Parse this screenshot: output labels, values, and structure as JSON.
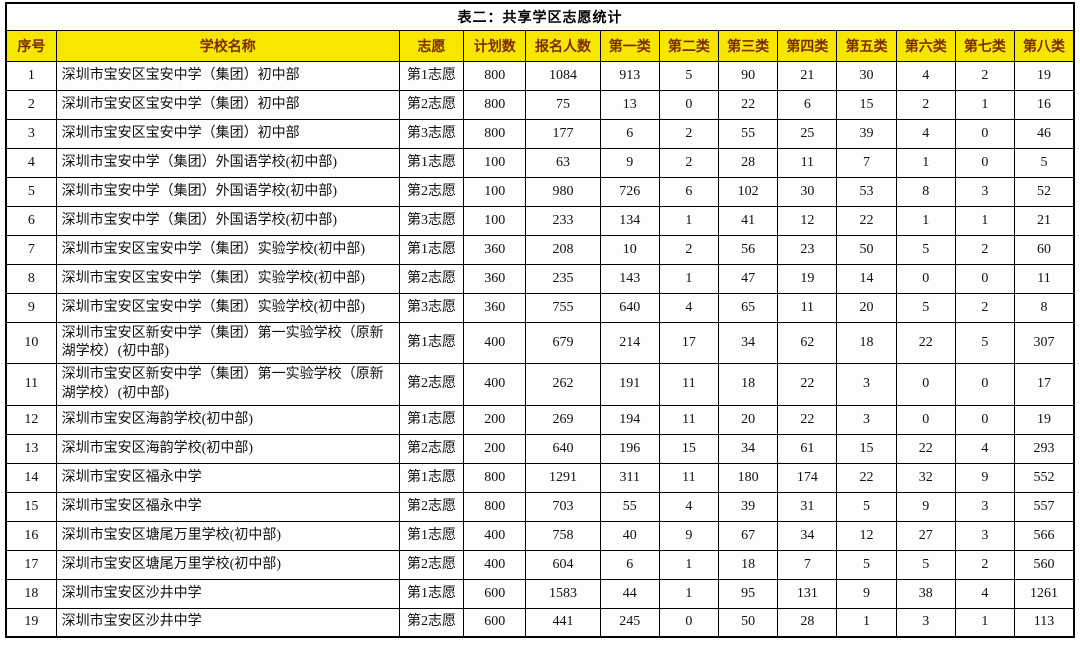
{
  "title": "表二：共享学区志愿统计",
  "colors": {
    "header_bg": "#f7e600",
    "header_text": "#7a2d05",
    "border": "#000000",
    "text": "#111111"
  },
  "table": {
    "headers": [
      "序号",
      "学校名称",
      "志愿",
      "计划数",
      "报名人数",
      "第一类",
      "第二类",
      "第三类",
      "第四类",
      "第五类",
      "第六类",
      "第七类",
      "第八类"
    ],
    "rows": [
      [
        "1",
        "深圳市宝安区宝安中学（集团）初中部",
        "第1志愿",
        "800",
        "1084",
        "913",
        "5",
        "90",
        "21",
        "30",
        "4",
        "2",
        "19"
      ],
      [
        "2",
        "深圳市宝安区宝安中学（集团）初中部",
        "第2志愿",
        "800",
        "75",
        "13",
        "0",
        "22",
        "6",
        "15",
        "2",
        "1",
        "16"
      ],
      [
        "3",
        "深圳市宝安区宝安中学（集团）初中部",
        "第3志愿",
        "800",
        "177",
        "6",
        "2",
        "55",
        "25",
        "39",
        "4",
        "0",
        "46"
      ],
      [
        "4",
        "深圳市宝安中学（集团）外国语学校(初中部)",
        "第1志愿",
        "100",
        "63",
        "9",
        "2",
        "28",
        "11",
        "7",
        "1",
        "0",
        "5"
      ],
      [
        "5",
        "深圳市宝安中学（集团）外国语学校(初中部)",
        "第2志愿",
        "100",
        "980",
        "726",
        "6",
        "102",
        "30",
        "53",
        "8",
        "3",
        "52"
      ],
      [
        "6",
        "深圳市宝安中学（集团）外国语学校(初中部)",
        "第3志愿",
        "100",
        "233",
        "134",
        "1",
        "41",
        "12",
        "22",
        "1",
        "1",
        "21"
      ],
      [
        "7",
        "深圳市宝安区宝安中学（集团）实验学校(初中部)",
        "第1志愿",
        "360",
        "208",
        "10",
        "2",
        "56",
        "23",
        "50",
        "5",
        "2",
        "60"
      ],
      [
        "8",
        "深圳市宝安区宝安中学（集团）实验学校(初中部)",
        "第2志愿",
        "360",
        "235",
        "143",
        "1",
        "47",
        "19",
        "14",
        "0",
        "0",
        "11"
      ],
      [
        "9",
        "深圳市宝安区宝安中学（集团）实验学校(初中部)",
        "第3志愿",
        "360",
        "755",
        "640",
        "4",
        "65",
        "11",
        "20",
        "5",
        "2",
        "8"
      ],
      [
        "10",
        "深圳市宝安区新安中学（集团）第一实验学校（原新湖学校）(初中部)",
        "第1志愿",
        "400",
        "679",
        "214",
        "17",
        "34",
        "62",
        "18",
        "22",
        "5",
        "307"
      ],
      [
        "11",
        "深圳市宝安区新安中学（集团）第一实验学校（原新湖学校）(初中部)",
        "第2志愿",
        "400",
        "262",
        "191",
        "11",
        "18",
        "22",
        "3",
        "0",
        "0",
        "17"
      ],
      [
        "12",
        "深圳市宝安区海韵学校(初中部)",
        "第1志愿",
        "200",
        "269",
        "194",
        "11",
        "20",
        "22",
        "3",
        "0",
        "0",
        "19"
      ],
      [
        "13",
        "深圳市宝安区海韵学校(初中部)",
        "第2志愿",
        "200",
        "640",
        "196",
        "15",
        "34",
        "61",
        "15",
        "22",
        "4",
        "293"
      ],
      [
        "14",
        "深圳市宝安区福永中学",
        "第1志愿",
        "800",
        "1291",
        "311",
        "11",
        "180",
        "174",
        "22",
        "32",
        "9",
        "552"
      ],
      [
        "15",
        "深圳市宝安区福永中学",
        "第2志愿",
        "800",
        "703",
        "55",
        "4",
        "39",
        "31",
        "5",
        "9",
        "3",
        "557"
      ],
      [
        "16",
        "深圳市宝安区塘尾万里学校(初中部)",
        "第1志愿",
        "400",
        "758",
        "40",
        "9",
        "67",
        "34",
        "12",
        "27",
        "3",
        "566"
      ],
      [
        "17",
        "深圳市宝安区塘尾万里学校(初中部)",
        "第2志愿",
        "400",
        "604",
        "6",
        "1",
        "18",
        "7",
        "5",
        "5",
        "2",
        "560"
      ],
      [
        "18",
        "深圳市宝安区沙井中学",
        "第1志愿",
        "600",
        "1583",
        "44",
        "1",
        "95",
        "131",
        "9",
        "38",
        "4",
        "1261"
      ],
      [
        "19",
        "深圳市宝安区沙井中学",
        "第2志愿",
        "600",
        "441",
        "245",
        "0",
        "50",
        "28",
        "1",
        "3",
        "1",
        "113"
      ]
    ]
  }
}
